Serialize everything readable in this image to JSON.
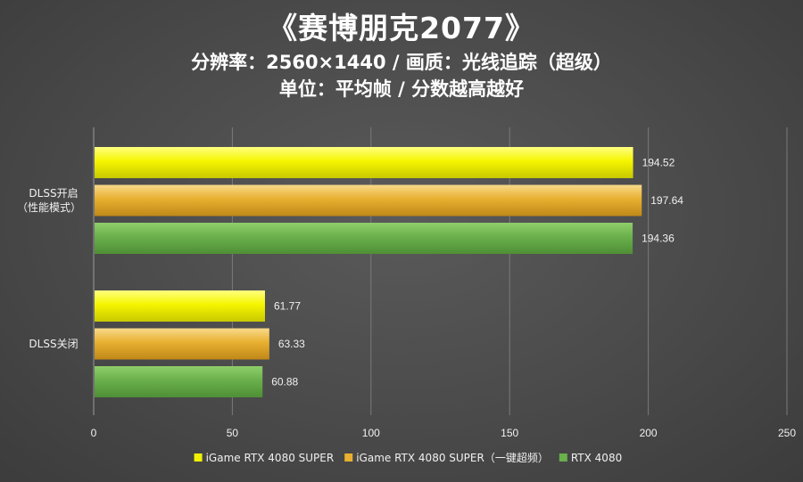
{
  "header": {
    "title": "《赛博朋克2077》",
    "subtitle": "分辨率：2560×1440 / 画质：光线追踪（超级）",
    "subtitle2": "单位：平均帧 / 分数越高越好"
  },
  "chart_data": {
    "type": "bar",
    "orientation": "horizontal",
    "categories": [
      "DLSS开启\n（性能模式）",
      "DLSS关闭"
    ],
    "series": [
      {
        "name": "iGame RTX 4080 SUPER",
        "color": "#f2f200",
        "values": [
          194.52,
          61.77
        ]
      },
      {
        "name": "iGame RTX 4080 SUPER（一键超频）",
        "color": "#e8b030",
        "values": [
          197.64,
          63.33
        ]
      },
      {
        "name": "RTX 4080",
        "color": "#6ab04c",
        "values": [
          194.36,
          60.88
        ]
      }
    ],
    "xlim": [
      0,
      250
    ],
    "xticks": [
      0,
      50,
      100,
      150,
      200,
      250
    ],
    "grid": true,
    "legend_position": "bottom"
  }
}
